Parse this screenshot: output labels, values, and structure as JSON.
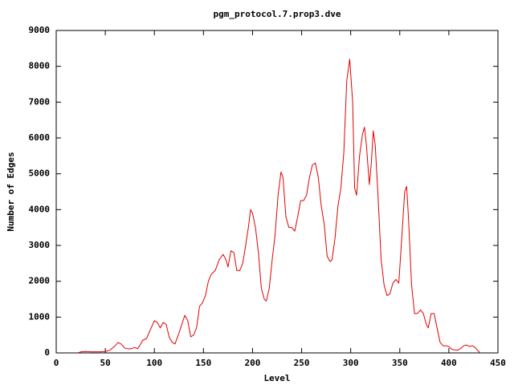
{
  "chart_data": {
    "type": "line",
    "title": "pgm_protocol.7.prop3.dve",
    "x_label": "Level",
    "y_label": "Number of Edges",
    "x": [
      22,
      25,
      30,
      35,
      40,
      45,
      50,
      55,
      60,
      63,
      66,
      70,
      75,
      80,
      83,
      85,
      88,
      92,
      96,
      100,
      103,
      106,
      109,
      112,
      115,
      118,
      121,
      125,
      128,
      131,
      134,
      137,
      140,
      143,
      146,
      149,
      152,
      155,
      158,
      162,
      166,
      170,
      173,
      175,
      178,
      181,
      184,
      187,
      190,
      193,
      196,
      198,
      200,
      203,
      206,
      209,
      212,
      214,
      217,
      220,
      223,
      226,
      229,
      231,
      234,
      237,
      240,
      243,
      246,
      249,
      252,
      255,
      258,
      261,
      264,
      267,
      270,
      273,
      276,
      279,
      281,
      284,
      287,
      290,
      293,
      296,
      299,
      302,
      304,
      306,
      309,
      312,
      314,
      316,
      319,
      321,
      323,
      325,
      328,
      331,
      334,
      337,
      340,
      343,
      346,
      349,
      352,
      355,
      357,
      359,
      362,
      365,
      368,
      371,
      374,
      377,
      379,
      382,
      385,
      388,
      391,
      394,
      397,
      400,
      403,
      406,
      409,
      412,
      415,
      418,
      421,
      424,
      427,
      430,
      432
    ],
    "values": [
      0,
      30,
      40,
      30,
      30,
      30,
      40,
      80,
      200,
      290,
      250,
      130,
      110,
      150,
      120,
      200,
      350,
      400,
      650,
      900,
      850,
      700,
      850,
      800,
      450,
      300,
      250,
      550,
      800,
      1050,
      900,
      450,
      500,
      700,
      1300,
      1400,
      1600,
      2000,
      2200,
      2300,
      2600,
      2750,
      2600,
      2400,
      2850,
      2800,
      2300,
      2300,
      2500,
      3000,
      3550,
      4000,
      3900,
      3500,
      2800,
      1800,
      1500,
      1450,
      1800,
      2600,
      3300,
      4400,
      5050,
      4900,
      3800,
      3500,
      3500,
      3400,
      3800,
      4250,
      4250,
      4400,
      4900,
      5250,
      5300,
      4900,
      4100,
      3600,
      2700,
      2550,
      2600,
      3200,
      4100,
      4600,
      5600,
      7600,
      8200,
      7000,
      4600,
      4400,
      5500,
      6100,
      6300,
      5800,
      4700,
      5300,
      6200,
      5800,
      4300,
      2600,
      1900,
      1600,
      1650,
      1950,
      2050,
      1950,
      3200,
      4500,
      4650,
      3700,
      1900,
      1100,
      1100,
      1200,
      1100,
      800,
      700,
      1100,
      1100,
      700,
      300,
      200,
      200,
      180,
      100,
      80,
      80,
      120,
      200,
      220,
      180,
      200,
      150,
      50,
      0
    ],
    "color": "#e00000",
    "xlim": [
      0,
      450
    ],
    "xticks": [
      0,
      50,
      100,
      150,
      200,
      250,
      300,
      350,
      400,
      450
    ],
    "ylim": [
      0,
      9000
    ],
    "yticks": [
      0,
      1000,
      2000,
      3000,
      4000,
      5000,
      6000,
      7000,
      8000,
      9000
    ]
  }
}
